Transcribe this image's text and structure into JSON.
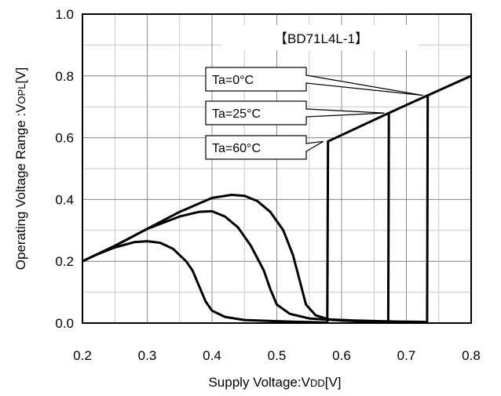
{
  "chart_data": {
    "type": "line",
    "title": "【BD71L4L-1】",
    "xlabel": {
      "main": "Supply  Voltage:V",
      "sub": "DD",
      "unit": "[V]"
    },
    "ylabel": {
      "main": "Operating Voltage Range :V",
      "sub": "OPL",
      "unit": "[V]"
    },
    "xlim": [
      0.2,
      0.8
    ],
    "ylim": [
      0.0,
      1.0
    ],
    "x_ticks": [
      "0.2",
      "0.3",
      "0.4",
      "0.5",
      "0.6",
      "0.7",
      "0.8"
    ],
    "y_ticks": [
      "0.0",
      "0.2",
      "0.4",
      "0.6",
      "0.8",
      "1.0"
    ],
    "x_minor_step": 0.05,
    "y_minor_step": 0.1,
    "grid": true,
    "series": [
      {
        "name": "Ta=0°C",
        "x": [
          0.2,
          0.25,
          0.3,
          0.35,
          0.4,
          0.43,
          0.45,
          0.47,
          0.49,
          0.51,
          0.525,
          0.535,
          0.545,
          0.56,
          0.58,
          0.62,
          0.68,
          0.72,
          0.732,
          0.733,
          0.8
        ],
        "y": [
          0.2,
          0.25,
          0.305,
          0.36,
          0.405,
          0.415,
          0.412,
          0.395,
          0.36,
          0.3,
          0.22,
          0.14,
          0.06,
          0.025,
          0.012,
          0.008,
          0.005,
          0.004,
          0.003,
          0.737,
          0.8
        ]
      },
      {
        "name": "Ta=25°C",
        "x": [
          0.2,
          0.25,
          0.3,
          0.35,
          0.38,
          0.4,
          0.42,
          0.44,
          0.46,
          0.48,
          0.49,
          0.5,
          0.52,
          0.55,
          0.6,
          0.65,
          0.672,
          0.673,
          0.733
        ],
        "y": [
          0.2,
          0.25,
          0.305,
          0.345,
          0.36,
          0.362,
          0.345,
          0.31,
          0.25,
          0.17,
          0.11,
          0.06,
          0.03,
          0.015,
          0.008,
          0.004,
          0.003,
          0.68,
          0.737
        ]
      },
      {
        "name": "Ta=60°C",
        "x": [
          0.2,
          0.22,
          0.25,
          0.28,
          0.3,
          0.32,
          0.34,
          0.36,
          0.37,
          0.38,
          0.39,
          0.4,
          0.42,
          0.45,
          0.5,
          0.55,
          0.578,
          0.579,
          0.673
        ],
        "y": [
          0.2,
          0.22,
          0.245,
          0.262,
          0.265,
          0.26,
          0.24,
          0.2,
          0.17,
          0.12,
          0.07,
          0.04,
          0.02,
          0.01,
          0.006,
          0.003,
          0.002,
          0.588,
          0.68
        ]
      }
    ],
    "annotations": [
      {
        "text": "Ta=0°C",
        "target": [
          0.733,
          0.737
        ]
      },
      {
        "text": "Ta=25°C",
        "target": [
          0.673,
          0.68
        ]
      },
      {
        "text": "Ta=60°C",
        "target": [
          0.579,
          0.588
        ]
      }
    ]
  }
}
